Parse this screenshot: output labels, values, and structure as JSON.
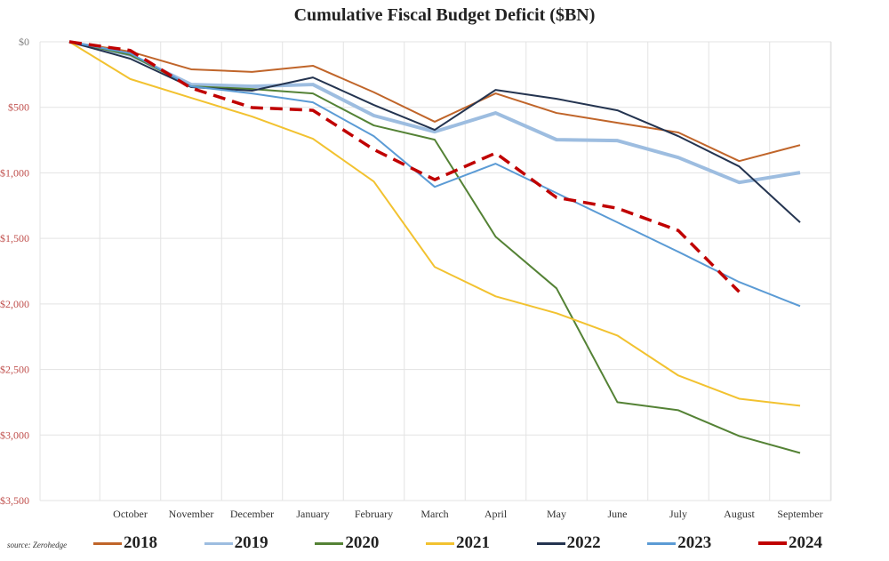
{
  "chart_data": {
    "type": "line",
    "title": "Cumulative Fiscal Budget Deficit ($BN)",
    "xlabel": "",
    "ylabel": "",
    "categories": [
      "",
      "October",
      "November",
      "December",
      "January",
      "February",
      "March",
      "April",
      "May",
      "June",
      "July",
      "August",
      "September"
    ],
    "ylim": [
      -3500,
      0
    ],
    "y_ticks": [
      0,
      -500,
      -1000,
      -1500,
      -2000,
      -2500,
      -3000,
      -3500
    ],
    "y_tick_labels": [
      "$0",
      "$500",
      "$1,000",
      "$1,500",
      "$2,000",
      "$2,500",
      "$3,000",
      "$3,500"
    ],
    "y_tick_colors": {
      "zero": "#7f7f7f",
      "negative": "#c0504d"
    },
    "grid": true,
    "legend_position": "bottom",
    "series": [
      {
        "name": "2018",
        "color": "#c0652a",
        "style": "solid",
        "values": [
          0,
          -75,
          -210,
          -230,
          -183,
          -385,
          -610,
          -394,
          -543,
          -618,
          -692,
          -910,
          -788
        ]
      },
      {
        "name": "2019",
        "color": "#9dbde0",
        "style": "thick",
        "values": [
          0,
          -100,
          -326,
          -340,
          -326,
          -563,
          -686,
          -543,
          -747,
          -754,
          -883,
          -1073,
          -998
        ]
      },
      {
        "name": "2020",
        "color": "#548235",
        "style": "solid",
        "values": [
          0,
          -100,
          -340,
          -360,
          -394,
          -638,
          -747,
          -1487,
          -1881,
          -2750,
          -2811,
          -3008,
          -3137
        ]
      },
      {
        "name": "2021",
        "color": "#f2c230",
        "style": "solid",
        "values": [
          0,
          -284,
          -428,
          -570,
          -740,
          -1066,
          -1718,
          -1942,
          -2071,
          -2241,
          -2546,
          -2723,
          -2777
        ]
      },
      {
        "name": "2022",
        "color": "#243450",
        "style": "solid",
        "values": [
          0,
          -129,
          -346,
          -373,
          -272,
          -482,
          -672,
          -367,
          -435,
          -523,
          -720,
          -951,
          -1378
        ]
      },
      {
        "name": "2023",
        "color": "#5b9bd5",
        "style": "solid",
        "values": [
          0,
          -88,
          -340,
          -394,
          -462,
          -720,
          -1107,
          -930,
          -1154,
          -1378,
          -1602,
          -1833,
          -2017
        ]
      },
      {
        "name": "2024",
        "color": "#c00000",
        "style": "dashed",
        "values": [
          0,
          -66,
          -353,
          -502,
          -523,
          -822,
          -1052,
          -849,
          -1188,
          -1270,
          -1440,
          -1908,
          null
        ]
      }
    ]
  },
  "source": "source: Zerohedge"
}
